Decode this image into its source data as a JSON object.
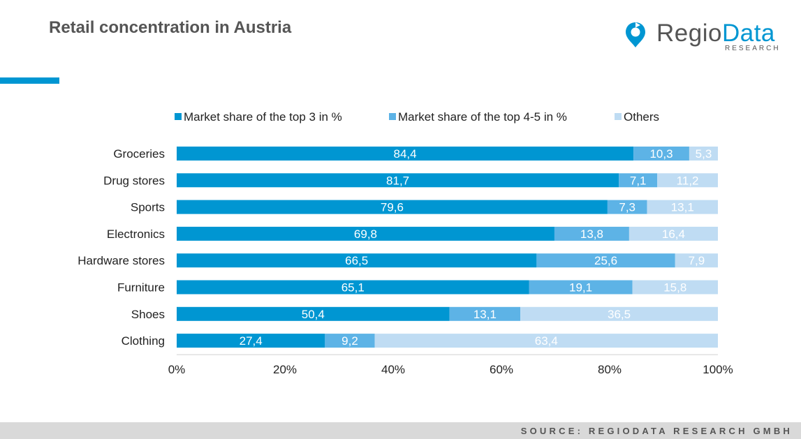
{
  "header": {
    "title": "Retail concentration in Austria"
  },
  "logo": {
    "name_part1": "Regio",
    "name_part2": "Data",
    "subtitle": "RESEARCH",
    "brand_color": "#0096d2"
  },
  "footer": {
    "source": "SOURCE: REGIODATA RESEARCH GMBH"
  },
  "chart_data": {
    "type": "bar",
    "orientation": "horizontal",
    "stacked": true,
    "categories": [
      "Groceries",
      "Drug stores",
      "Sports",
      "Electronics",
      "Hardware stores",
      "Furniture",
      "Shoes",
      "Clothing"
    ],
    "series": [
      {
        "name": "Market share of the top 3 in %",
        "color": "#0096d2",
        "values": [
          84.4,
          81.7,
          79.6,
          69.8,
          66.5,
          65.1,
          50.4,
          27.4
        ],
        "labels": [
          "84,4",
          "81,7",
          "79,6",
          "69,8",
          "66,5",
          "65,1",
          "50,4",
          "27,4"
        ]
      },
      {
        "name": "Market share of the top 4-5 in %",
        "color": "#5db3e6",
        "values": [
          10.3,
          7.1,
          7.3,
          13.8,
          25.6,
          19.1,
          13.1,
          9.2
        ],
        "labels": [
          "10,3",
          "7,1",
          "7,3",
          "13,8",
          "25,6",
          "19,1",
          "13,1",
          "9,2"
        ]
      },
      {
        "name": "Others",
        "color": "#bfdcf3",
        "values": [
          5.3,
          11.2,
          13.1,
          16.4,
          7.9,
          15.8,
          36.5,
          63.4
        ],
        "labels": [
          "5,3",
          "11,2",
          "13,1",
          "16,4",
          "7,9",
          "15,8",
          "36,5",
          "63,4"
        ]
      }
    ],
    "xlim": [
      0,
      100
    ],
    "x_ticks": [
      "0%",
      "20%",
      "40%",
      "60%",
      "80%",
      "100%"
    ],
    "legend_position": "top",
    "grid": false
  }
}
